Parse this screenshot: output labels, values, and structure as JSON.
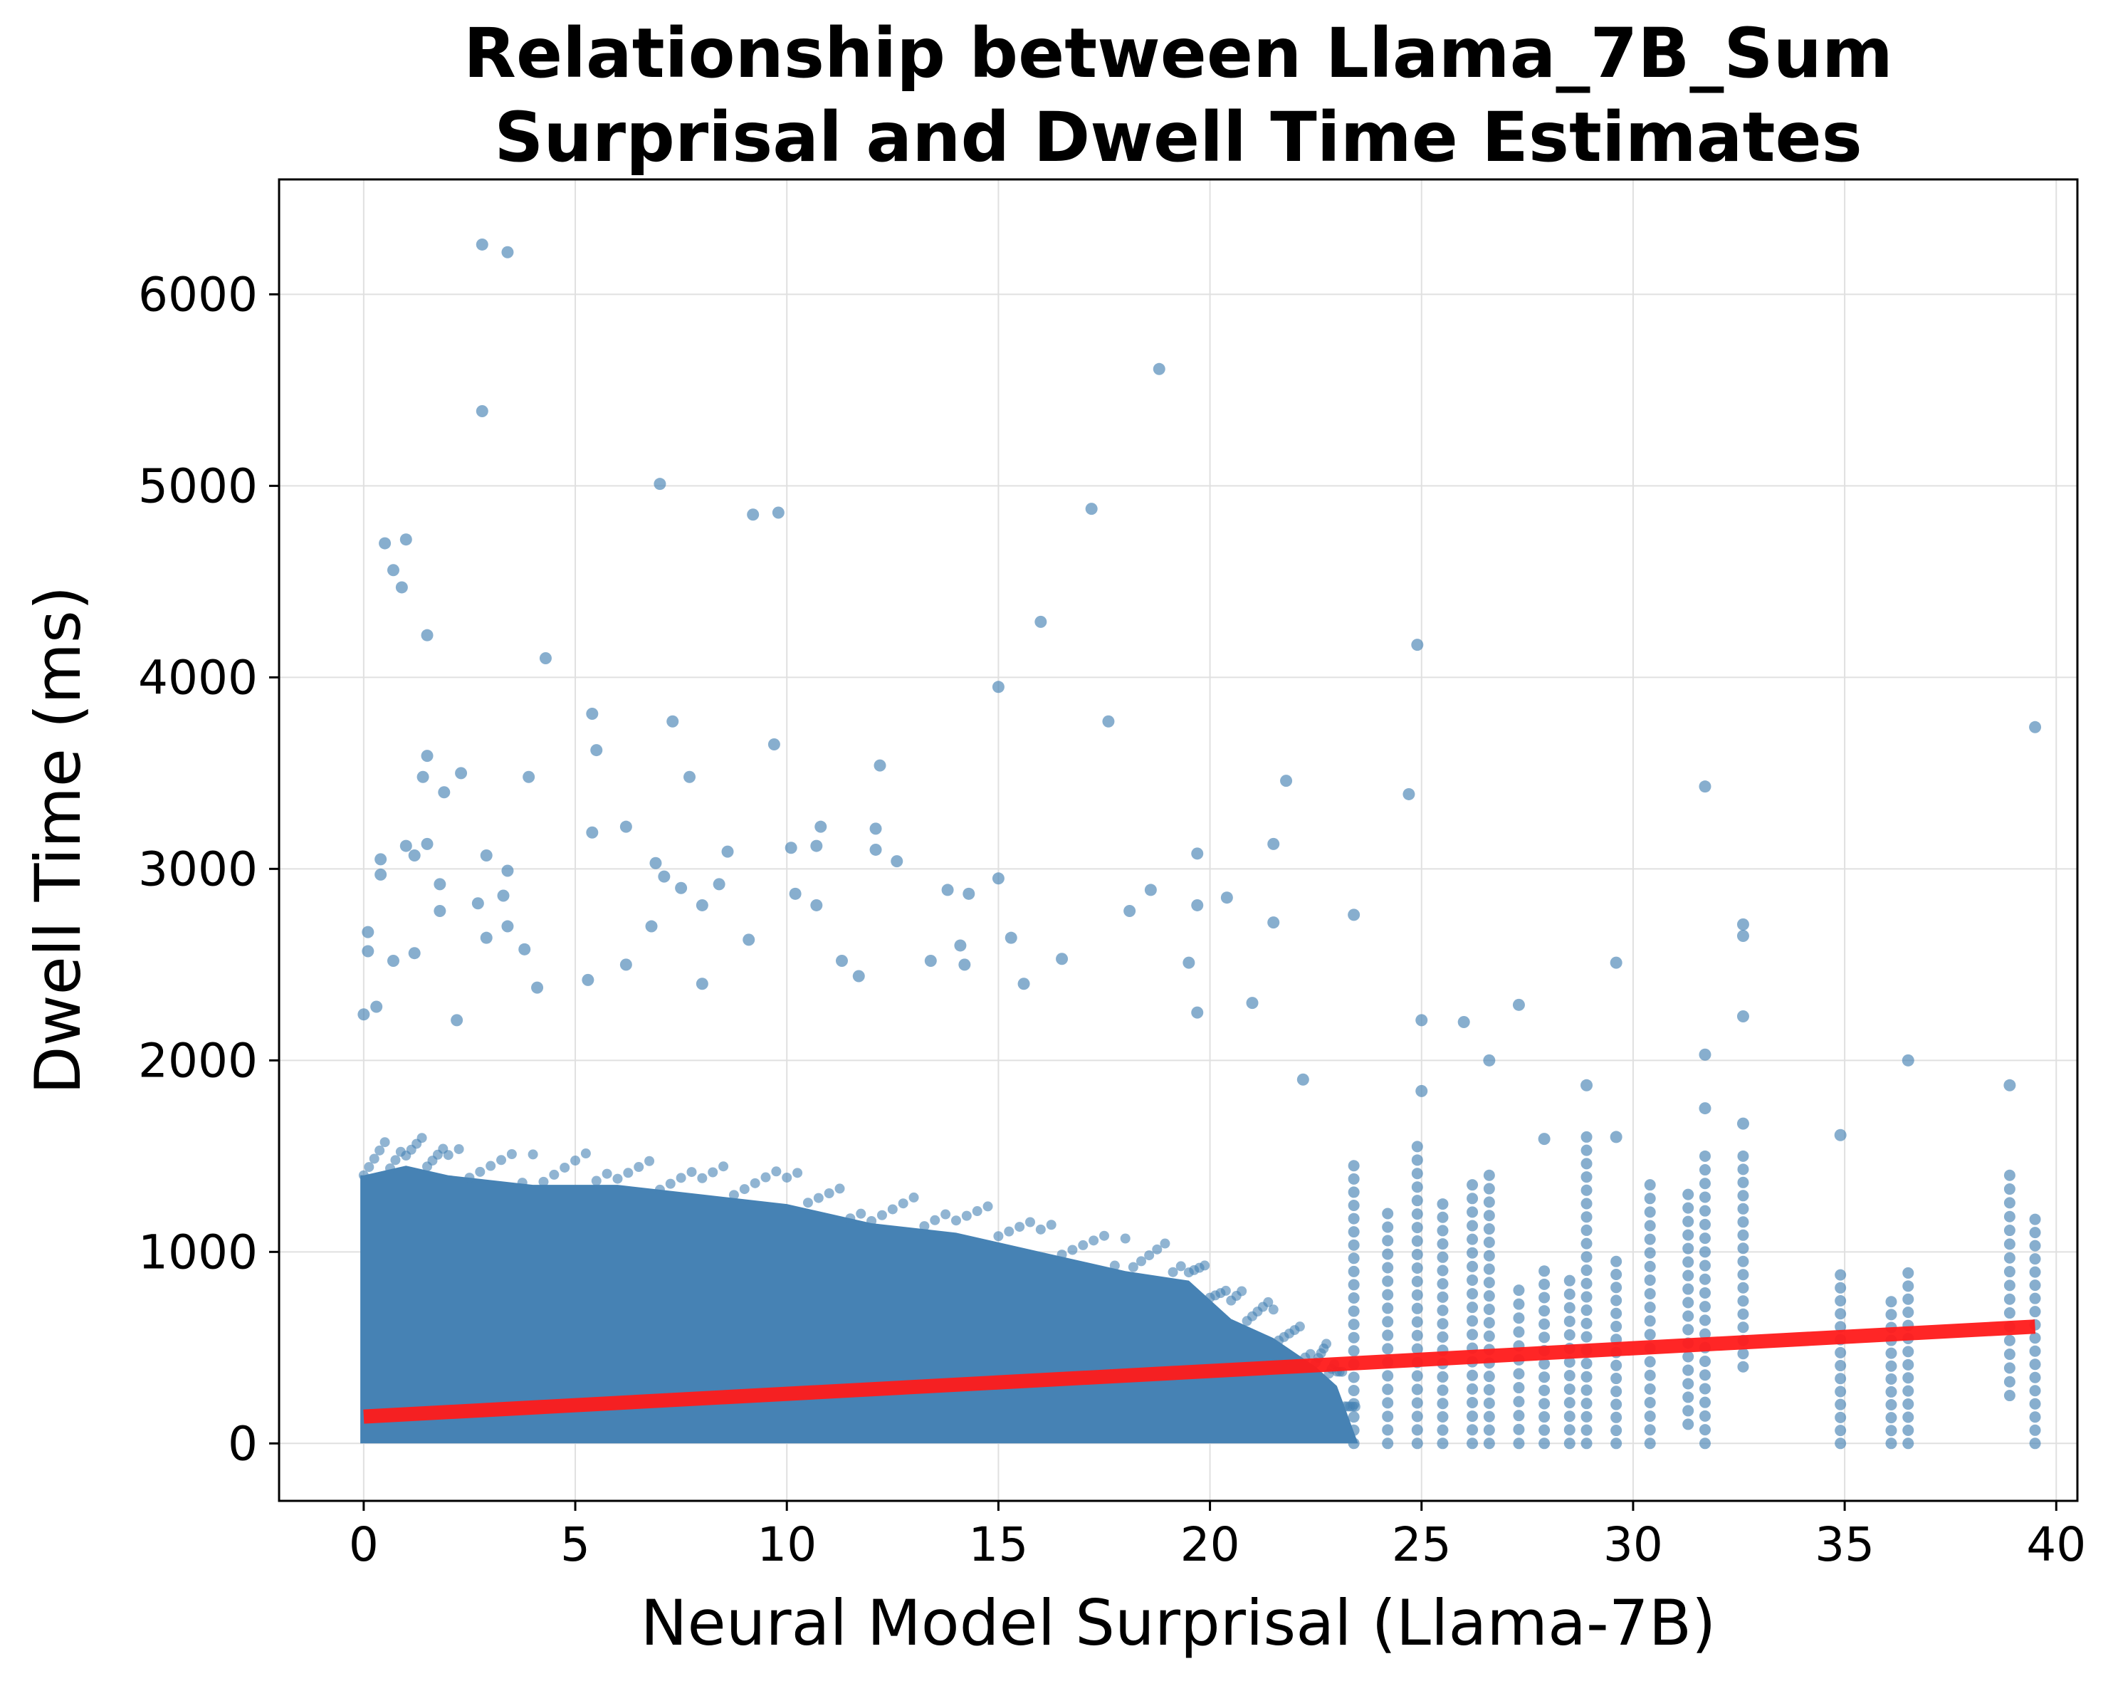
{
  "chart_data": {
    "type": "scatter",
    "title": [
      "Relationship between Llama_7B_Sum",
      "Surprisal and Dwell Time Estimates"
    ],
    "xlabel": "Neural Model Surprisal (Llama-7B)",
    "ylabel": "Dwell Time (ms)",
    "xlim": [
      -2,
      40.5
    ],
    "ylim": [
      -300,
      6600
    ],
    "xticks": [
      0,
      5,
      10,
      15,
      20,
      25,
      30,
      35,
      40
    ],
    "yticks": [
      0,
      1000,
      2000,
      3000,
      4000,
      5000,
      6000
    ],
    "grid": true,
    "colors": {
      "points": "#4682b4",
      "regression": "#ff1a1a",
      "grid": "#e0e0e0"
    },
    "dense_band": {
      "description_values": "solid region of overlapping points",
      "upper_profile": [
        [
          0,
          1400
        ],
        [
          1,
          1450
        ],
        [
          2,
          1400
        ],
        [
          4,
          1350
        ],
        [
          6,
          1350
        ],
        [
          8,
          1300
        ],
        [
          10,
          1250
        ],
        [
          12,
          1150
        ],
        [
          14,
          1100
        ],
        [
          16,
          1000
        ],
        [
          18,
          900
        ],
        [
          19.5,
          850
        ],
        [
          20.5,
          650
        ],
        [
          21.5,
          550
        ],
        [
          22.5,
          400
        ],
        [
          23,
          300
        ],
        [
          23.5,
          0
        ]
      ]
    },
    "outliers": [
      [
        2.8,
        6260
      ],
      [
        3.4,
        6220
      ],
      [
        2.8,
        5390
      ],
      [
        18.8,
        5610
      ],
      [
        7.0,
        5010
      ],
      [
        9.2,
        4850
      ],
      [
        9.8,
        4860
      ],
      [
        17.2,
        4880
      ],
      [
        0.5,
        4700
      ],
      [
        1.0,
        4720
      ],
      [
        0.7,
        4560
      ],
      [
        0.9,
        4470
      ],
      [
        1.5,
        4220
      ],
      [
        16.0,
        4290
      ],
      [
        4.3,
        4100
      ],
      [
        24.9,
        4170
      ],
      [
        15.0,
        3950
      ],
      [
        5.4,
        3810
      ],
      [
        7.3,
        3770
      ],
      [
        17.6,
        3770
      ],
      [
        39.5,
        3740
      ],
      [
        9.7,
        3650
      ],
      [
        5.5,
        3620
      ],
      [
        1.5,
        3590
      ],
      [
        12.2,
        3540
      ],
      [
        2.3,
        3500
      ],
      [
        1.4,
        3480
      ],
      [
        3.9,
        3480
      ],
      [
        7.7,
        3480
      ],
      [
        21.8,
        3460
      ],
      [
        31.7,
        3430
      ],
      [
        1.9,
        3400
      ],
      [
        24.7,
        3390
      ],
      [
        5.4,
        3190
      ],
      [
        6.2,
        3220
      ],
      [
        10.8,
        3220
      ],
      [
        12.1,
        3210
      ],
      [
        1.0,
        3120
      ],
      [
        1.5,
        3130
      ],
      [
        10.1,
        3110
      ],
      [
        10.7,
        3120
      ],
      [
        12.1,
        3100
      ],
      [
        21.5,
        3130
      ],
      [
        19.7,
        3080
      ],
      [
        0.4,
        3050
      ],
      [
        1.2,
        3070
      ],
      [
        2.9,
        3070
      ],
      [
        8.6,
        3090
      ],
      [
        6.9,
        3030
      ],
      [
        12.6,
        3040
      ],
      [
        0.4,
        2970
      ],
      [
        3.4,
        2990
      ],
      [
        7.1,
        2960
      ],
      [
        8.4,
        2920
      ],
      [
        15.0,
        2950
      ],
      [
        1.8,
        2920
      ],
      [
        7.5,
        2900
      ],
      [
        13.8,
        2890
      ],
      [
        18.6,
        2890
      ],
      [
        3.3,
        2860
      ],
      [
        14.3,
        2870
      ],
      [
        10.2,
        2870
      ],
      [
        20.4,
        2850
      ],
      [
        10.7,
        2810
      ],
      [
        19.7,
        2810
      ],
      [
        2.7,
        2820
      ],
      [
        8.0,
        2810
      ],
      [
        18.1,
        2780
      ],
      [
        1.8,
        2780
      ],
      [
        23.4,
        2760
      ],
      [
        21.5,
        2720
      ],
      [
        32.6,
        2710
      ],
      [
        3.4,
        2700
      ],
      [
        6.8,
        2700
      ],
      [
        32.6,
        2650
      ],
      [
        15.3,
        2640
      ],
      [
        2.9,
        2640
      ],
      [
        9.1,
        2630
      ],
      [
        14.1,
        2600
      ],
      [
        3.8,
        2580
      ],
      [
        1.2,
        2560
      ],
      [
        0.1,
        2570
      ],
      [
        16.5,
        2530
      ],
      [
        0.7,
        2520
      ],
      [
        11.3,
        2520
      ],
      [
        13.4,
        2520
      ],
      [
        29.6,
        2510
      ],
      [
        19.5,
        2510
      ],
      [
        6.2,
        2500
      ],
      [
        14.2,
        2500
      ],
      [
        0.1,
        2670
      ],
      [
        0.3,
        2280
      ],
      [
        2.2,
        2210
      ],
      [
        25.0,
        2210
      ],
      [
        26.0,
        2200
      ],
      [
        32.6,
        2230
      ],
      [
        27.3,
        2290
      ],
      [
        21.0,
        2300
      ],
      [
        19.7,
        2250
      ],
      [
        15.6,
        2400
      ],
      [
        11.7,
        2440
      ],
      [
        8.0,
        2400
      ],
      [
        5.3,
        2420
      ],
      [
        4.1,
        2380
      ],
      [
        0.0,
        2240
      ],
      [
        36.5,
        2000
      ],
      [
        31.7,
        2030
      ],
      [
        26.6,
        2000
      ],
      [
        38.9,
        1870
      ],
      [
        28.9,
        1870
      ],
      [
        34.9,
        1610
      ],
      [
        31.7,
        1750
      ],
      [
        32.6,
        1670
      ],
      [
        29.6,
        1600
      ],
      [
        27.9,
        1590
      ],
      [
        25.0,
        1840
      ],
      [
        22.2,
        1900
      ]
    ],
    "sparse_columns": [
      {
        "x": 23.4,
        "ymin": 0,
        "ymax": 1450
      },
      {
        "x": 24.2,
        "ymin": 0,
        "ymax": 1200
      },
      {
        "x": 24.9,
        "ymin": 0,
        "ymax": 1550
      },
      {
        "x": 25.5,
        "ymin": 0,
        "ymax": 1250
      },
      {
        "x": 26.2,
        "ymin": 0,
        "ymax": 1350
      },
      {
        "x": 26.6,
        "ymin": 0,
        "ymax": 1400
      },
      {
        "x": 27.3,
        "ymin": 0,
        "ymax": 800
      },
      {
        "x": 27.9,
        "ymin": 0,
        "ymax": 900
      },
      {
        "x": 28.5,
        "ymin": 0,
        "ymax": 850
      },
      {
        "x": 28.9,
        "ymin": 0,
        "ymax": 1600
      },
      {
        "x": 29.6,
        "ymin": 0,
        "ymax": 950
      },
      {
        "x": 30.4,
        "ymin": 0,
        "ymax": 1350
      },
      {
        "x": 31.3,
        "ymin": 100,
        "ymax": 1300
      },
      {
        "x": 31.7,
        "ymin": 0,
        "ymax": 1500
      },
      {
        "x": 32.6,
        "ymin": 400,
        "ymax": 1500
      },
      {
        "x": 34.9,
        "ymin": 0,
        "ymax": 880
      },
      {
        "x": 36.1,
        "ymin": 0,
        "ymax": 740
      },
      {
        "x": 36.5,
        "ymin": 0,
        "ymax": 890
      },
      {
        "x": 38.9,
        "ymin": 250,
        "ymax": 1400
      },
      {
        "x": 39.5,
        "ymin": 0,
        "ymax": 1170
      }
    ],
    "regression_line": {
      "x": [
        0,
        39.5
      ],
      "y": [
        140,
        610
      ]
    }
  }
}
